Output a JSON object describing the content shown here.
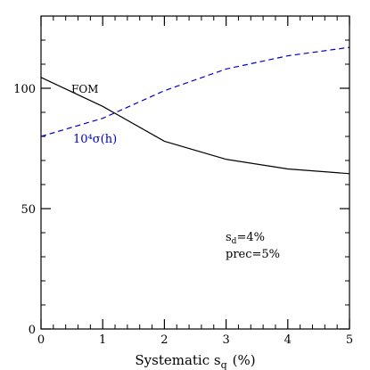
{
  "chart_data": {
    "type": "line",
    "xlabel": "Systematic s",
    "xlabel_sub": "q",
    "xlabel_unit": "(%)",
    "xlim": [
      0,
      5
    ],
    "ylim": [
      0,
      130
    ],
    "x_ticks": [
      0,
      1,
      2,
      3,
      4,
      5
    ],
    "y_ticks": [
      0,
      50,
      100
    ],
    "y_minor_step": 10,
    "x_minor_step": 0.2,
    "grid": false,
    "series": [
      {
        "name": "FOM",
        "color": "#000000",
        "dash": "solid",
        "x": [
          0,
          1,
          2,
          3,
          4,
          5
        ],
        "y": [
          104.5,
          92.5,
          78,
          70.5,
          66.5,
          64.5
        ]
      },
      {
        "name": "10⁴σ(h)",
        "color": "#0000cc",
        "dash": "dashed",
        "x": [
          0,
          1,
          2,
          3,
          4,
          5
        ],
        "y": [
          80,
          87.5,
          99,
          108,
          113.5,
          117
        ]
      }
    ],
    "annotations": {
      "fom_label": "FOM",
      "sigma_label": "10⁴σ(h)",
      "sd_label": "s",
      "sd_sub": "d",
      "sd_value": "=4%",
      "prec_label": "prec=5%"
    }
  }
}
